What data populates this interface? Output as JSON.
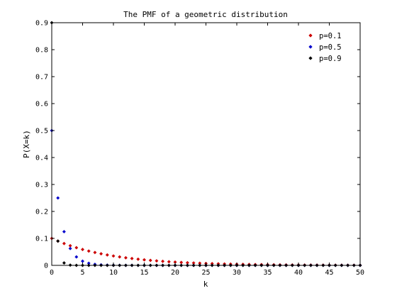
{
  "chart_data": {
    "type": "scatter",
    "title": "The PMF of a geometric distribution",
    "xlabel": "k",
    "ylabel": "P(X=k)",
    "xlim": [
      0,
      50
    ],
    "ylim": [
      0,
      0.9
    ],
    "xticks": [
      0,
      5,
      10,
      15,
      20,
      25,
      30,
      35,
      40,
      45,
      50
    ],
    "xtick_labels": [
      "0",
      "5",
      "10",
      "15",
      "20",
      "25",
      "30",
      "35",
      "40",
      "45",
      "50"
    ],
    "yticks": [
      0,
      0.1,
      0.2,
      0.3,
      0.4,
      0.5,
      0.6,
      0.7,
      0.8,
      0.9
    ],
    "ytick_labels": [
      "0",
      "0.1",
      "0.2",
      "0.3",
      "0.4",
      "0.5",
      "0.6",
      "0.7",
      "0.8",
      "0.9"
    ],
    "grid": false,
    "legend_position": "top-right",
    "marker": "diamond",
    "x": [
      0,
      1,
      2,
      3,
      4,
      5,
      6,
      7,
      8,
      9,
      10,
      11,
      12,
      13,
      14,
      15,
      16,
      17,
      18,
      19,
      20,
      21,
      22,
      23,
      24,
      25,
      26,
      27,
      28,
      29,
      30,
      31,
      32,
      33,
      34,
      35,
      36,
      37,
      38,
      39,
      40,
      41,
      42,
      43,
      44,
      45,
      46,
      47,
      48,
      49,
      50
    ],
    "series": [
      {
        "name": "p=0.1",
        "color": "#cc0000",
        "values": [
          0.1,
          0.09,
          0.081,
          0.0729,
          0.0656,
          0.059,
          0.0531,
          0.0478,
          0.043,
          0.0387,
          0.0349,
          0.0314,
          0.0282,
          0.0254,
          0.0229,
          0.0206,
          0.0185,
          0.0167,
          0.015,
          0.0135,
          0.0122,
          0.0109,
          0.0098,
          0.0089,
          0.008,
          0.0072,
          0.0065,
          0.0058,
          0.0052,
          0.0047,
          0.0042,
          0.0038,
          0.0034,
          0.0031,
          0.0028,
          0.0025,
          0.0023,
          0.002,
          0.0018,
          0.0016,
          0.0015,
          0.0013,
          0.0012,
          0.0011,
          0.001,
          0.0009,
          0.0008,
          0.0007,
          0.0006,
          0.0006,
          0.0005
        ]
      },
      {
        "name": "p=0.5",
        "color": "#0000cc",
        "values": [
          0.5,
          0.25,
          0.125,
          0.0625,
          0.0313,
          0.0156,
          0.0078,
          0.0039,
          0.002,
          0.001,
          0.0005,
          0.0002,
          0.0001,
          0.0001,
          0,
          0,
          0,
          0,
          0,
          0,
          0,
          0,
          0,
          0,
          0,
          0,
          0,
          0,
          0,
          0,
          0,
          0,
          0,
          0,
          0,
          0,
          0,
          0,
          0,
          0,
          0,
          0,
          0,
          0,
          0,
          0,
          0,
          0,
          0,
          0,
          0
        ]
      },
      {
        "name": "p=0.9",
        "color": "#000000",
        "values": [
          0.9,
          0.09,
          0.009,
          0.0009,
          0.0001,
          0,
          0,
          0,
          0,
          0,
          0,
          0,
          0,
          0,
          0,
          0,
          0,
          0,
          0,
          0,
          0,
          0,
          0,
          0,
          0,
          0,
          0,
          0,
          0,
          0,
          0,
          0,
          0,
          0,
          0,
          0,
          0,
          0,
          0,
          0,
          0,
          0,
          0,
          0,
          0,
          0,
          0,
          0,
          0,
          0,
          0
        ]
      }
    ]
  }
}
